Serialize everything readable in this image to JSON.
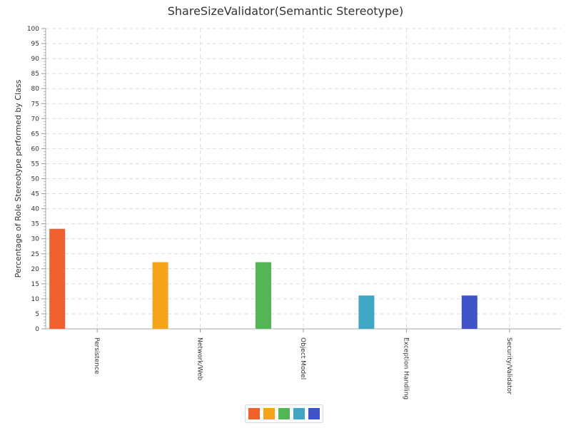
{
  "title": "ShareSizeValidator(Semantic Stereotype)",
  "chart_data": {
    "type": "bar",
    "title": "ShareSizeValidator(Semantic Stereotype)",
    "ylabel": "Percentage of Role Stereotype performed by Class",
    "xlabel": "",
    "ylim": [
      0,
      100
    ],
    "y_tick_step": 5,
    "grid": true,
    "legend_position": "bottom",
    "categories": [
      "Persistence",
      "Network/Web",
      "Object Model",
      "Exception Handling",
      "Security/Validator"
    ],
    "values": [
      33.3,
      22.2,
      22.2,
      11.1,
      11.1
    ],
    "colors": [
      "#f0602d",
      "#f7a31a",
      "#53b554",
      "#3fa7c4",
      "#3f53c8"
    ]
  }
}
